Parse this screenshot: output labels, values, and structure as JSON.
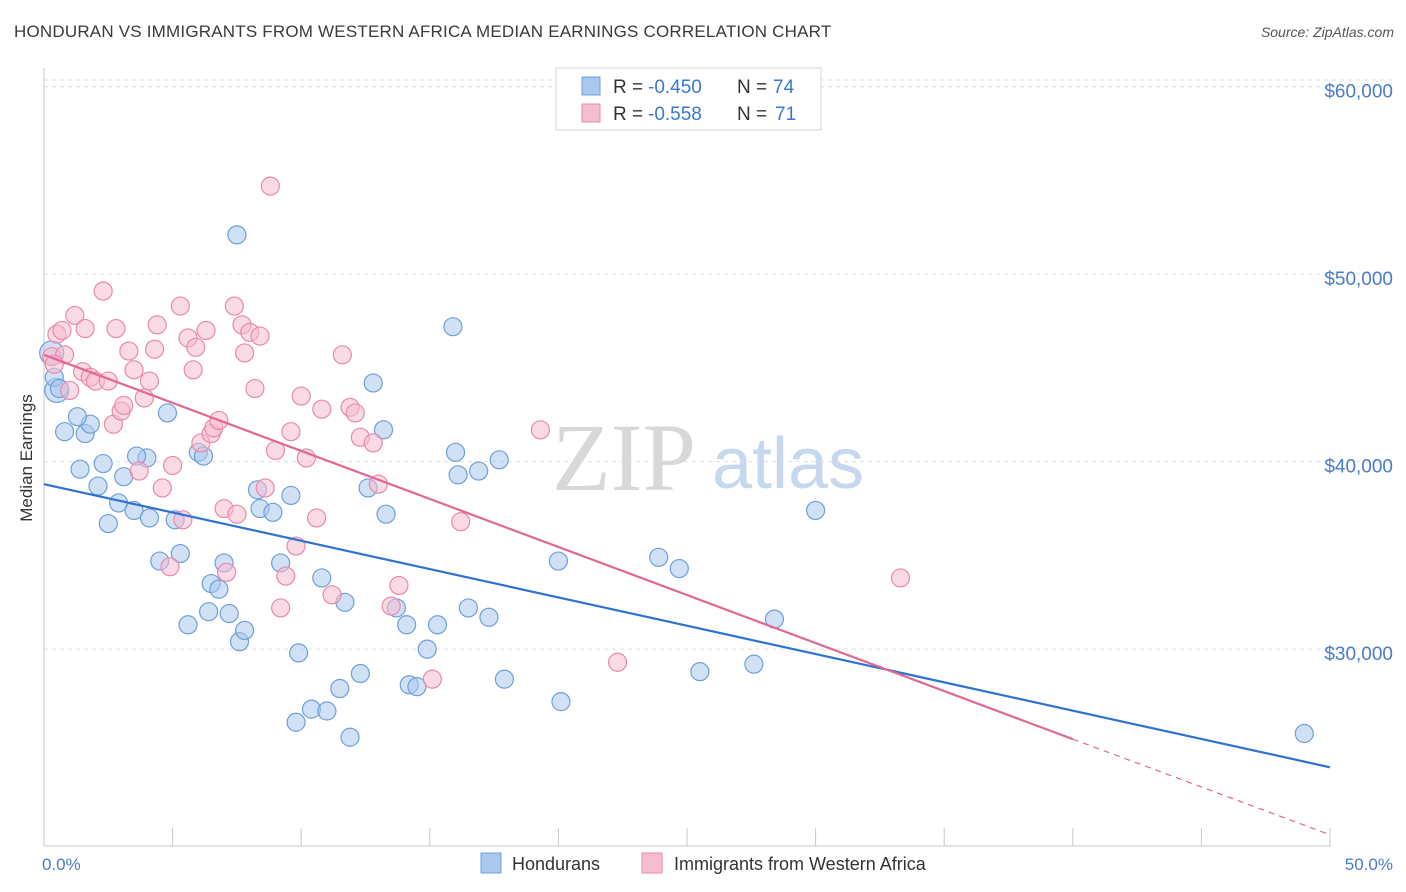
{
  "title": "HONDURAN VS IMMIGRANTS FROM WESTERN AFRICA MEDIAN EARNINGS CORRELATION CHART",
  "source": "Source: ZipAtlas.com",
  "colors": {
    "blue_fill": "#aac8ef",
    "blue_stroke": "#6f9fd8",
    "blue_line": "#2f73d0",
    "pink_fill": "#f6bcd0",
    "pink_stroke": "#e88aa8",
    "pink_line": "#e06894",
    "tick_text": "#4a7cc9",
    "grid": "#dedede"
  },
  "legend": {
    "rows": [
      {
        "r_label": "R =",
        "r_value": "-0.450",
        "n_label": "N =",
        "n_value": "74"
      },
      {
        "r_label": "R =",
        "r_value": "-0.558",
        "n_label": "N =",
        "n_value": "71"
      }
    ]
  },
  "bottom_legend": [
    "Hondurans",
    "Immigrants from Western Africa"
  ],
  "watermark": {
    "zip": "ZIP",
    "atlas": "atlas"
  },
  "chart_data": {
    "type": "scatter",
    "xlabel": "",
    "ylabel": "Median Earnings",
    "x_tick_labels": [
      "0.0%",
      "50.0%"
    ],
    "y_tick_labels": [
      "$30,000",
      "$40,000",
      "$50,000",
      "$60,000"
    ],
    "y_ticks": [
      30000,
      40000,
      50000,
      60000
    ],
    "xlim": [
      0,
      50
    ],
    "ylim": [
      19500,
      61000
    ],
    "grid": true,
    "legend_position": "top-center",
    "series": [
      {
        "name": "Hondurans",
        "trend": {
          "x": [
            0,
            50
          ],
          "y": [
            38800,
            23700
          ]
        },
        "points": [
          [
            0.3,
            45.8
          ],
          [
            0.5,
            43.8
          ],
          [
            0.8,
            41.6
          ],
          [
            1.6,
            41.5
          ],
          [
            1.8,
            42.0
          ],
          [
            2.3,
            39.9
          ],
          [
            1.4,
            39.6
          ],
          [
            2.1,
            38.7
          ],
          [
            2.5,
            36.7
          ],
          [
            2.9,
            37.8
          ],
          [
            3.1,
            39.2
          ],
          [
            3.5,
            37.4
          ],
          [
            4.0,
            40.2
          ],
          [
            3.6,
            40.3
          ],
          [
            4.8,
            42.6
          ],
          [
            4.1,
            37.0
          ],
          [
            4.5,
            34.7
          ],
          [
            5.1,
            36.9
          ],
          [
            5.3,
            35.1
          ],
          [
            5.6,
            31.3
          ],
          [
            6.0,
            40.5
          ],
          [
            6.2,
            40.3
          ],
          [
            6.4,
            32.0
          ],
          [
            6.5,
            33.5
          ],
          [
            6.8,
            33.2
          ],
          [
            7.0,
            34.6
          ],
          [
            7.2,
            31.9
          ],
          [
            7.6,
            30.4
          ],
          [
            7.8,
            31.0
          ],
          [
            7.5,
            52.1
          ],
          [
            8.3,
            38.5
          ],
          [
            8.4,
            37.5
          ],
          [
            8.9,
            37.3
          ],
          [
            9.2,
            34.6
          ],
          [
            9.6,
            38.2
          ],
          [
            9.8,
            26.1
          ],
          [
            9.9,
            29.8
          ],
          [
            10.4,
            26.8
          ],
          [
            10.8,
            33.8
          ],
          [
            11.0,
            26.7
          ],
          [
            11.5,
            27.9
          ],
          [
            11.7,
            32.5
          ],
          [
            11.9,
            25.3
          ],
          [
            12.3,
            28.7
          ],
          [
            12.6,
            38.6
          ],
          [
            12.8,
            44.2
          ],
          [
            13.2,
            41.7
          ],
          [
            13.3,
            37.2
          ],
          [
            13.7,
            32.2
          ],
          [
            14.1,
            31.3
          ],
          [
            14.2,
            28.1
          ],
          [
            14.5,
            28.0
          ],
          [
            14.9,
            30.0
          ],
          [
            15.3,
            31.3
          ],
          [
            15.9,
            47.2
          ],
          [
            16.0,
            40.5
          ],
          [
            16.1,
            39.3
          ],
          [
            16.5,
            32.2
          ],
          [
            16.9,
            39.5
          ],
          [
            17.3,
            31.7
          ],
          [
            17.7,
            40.1
          ],
          [
            17.9,
            28.4
          ],
          [
            20.1,
            27.2
          ],
          [
            20.0,
            34.7
          ],
          [
            23.9,
            34.9
          ],
          [
            24.7,
            34.3
          ],
          [
            25.5,
            28.8
          ],
          [
            27.6,
            29.2
          ],
          [
            28.4,
            31.6
          ],
          [
            30.0,
            37.4
          ],
          [
            49.0,
            25.5
          ],
          [
            0.4,
            44.5
          ],
          [
            0.6,
            43.9
          ],
          [
            1.3,
            42.4
          ]
        ]
      },
      {
        "name": "Immigrants from Western Africa",
        "trend": {
          "x": [
            0,
            40
          ],
          "y": [
            45700,
            25200
          ]
        },
        "trend_dashed": {
          "x": [
            40,
            50
          ],
          "y": [
            25200,
            20100
          ]
        },
        "points": [
          [
            0.3,
            45.6
          ],
          [
            0.5,
            46.8
          ],
          [
            0.7,
            47.0
          ],
          [
            0.8,
            45.7
          ],
          [
            1.0,
            43.8
          ],
          [
            1.2,
            47.8
          ],
          [
            1.5,
            44.8
          ],
          [
            1.6,
            47.1
          ],
          [
            1.8,
            44.5
          ],
          [
            2.0,
            44.3
          ],
          [
            2.3,
            49.1
          ],
          [
            2.5,
            44.3
          ],
          [
            2.7,
            42.0
          ],
          [
            2.8,
            47.1
          ],
          [
            3.0,
            42.7
          ],
          [
            3.1,
            43.0
          ],
          [
            3.3,
            45.9
          ],
          [
            3.5,
            44.9
          ],
          [
            3.7,
            39.5
          ],
          [
            3.9,
            43.4
          ],
          [
            4.1,
            44.3
          ],
          [
            4.3,
            46.0
          ],
          [
            4.4,
            47.3
          ],
          [
            4.6,
            38.6
          ],
          [
            4.9,
            34.4
          ],
          [
            5.0,
            39.8
          ],
          [
            5.3,
            48.3
          ],
          [
            5.4,
            36.9
          ],
          [
            5.6,
            46.6
          ],
          [
            5.8,
            44.9
          ],
          [
            5.9,
            46.1
          ],
          [
            6.1,
            41.0
          ],
          [
            6.3,
            47.0
          ],
          [
            6.5,
            41.5
          ],
          [
            6.6,
            41.8
          ],
          [
            6.8,
            42.2
          ],
          [
            7.0,
            37.5
          ],
          [
            7.1,
            34.1
          ],
          [
            7.4,
            48.3
          ],
          [
            7.5,
            37.2
          ],
          [
            7.7,
            47.3
          ],
          [
            7.8,
            45.8
          ],
          [
            8.0,
            46.9
          ],
          [
            8.2,
            43.9
          ],
          [
            8.4,
            46.7
          ],
          [
            8.6,
            38.6
          ],
          [
            8.8,
            54.7
          ],
          [
            9.0,
            40.6
          ],
          [
            9.2,
            32.2
          ],
          [
            9.4,
            33.9
          ],
          [
            9.6,
            41.6
          ],
          [
            9.8,
            35.5
          ],
          [
            10.0,
            43.5
          ],
          [
            10.2,
            40.2
          ],
          [
            10.6,
            37.0
          ],
          [
            10.8,
            42.8
          ],
          [
            11.2,
            32.9
          ],
          [
            11.6,
            45.7
          ],
          [
            11.9,
            42.9
          ],
          [
            12.1,
            42.6
          ],
          [
            12.3,
            41.3
          ],
          [
            12.8,
            41.0
          ],
          [
            13.0,
            38.8
          ],
          [
            13.5,
            32.3
          ],
          [
            13.8,
            33.4
          ],
          [
            15.1,
            28.4
          ],
          [
            16.2,
            36.8
          ],
          [
            19.3,
            41.7
          ],
          [
            22.3,
            29.3
          ],
          [
            33.3,
            33.8
          ],
          [
            0.4,
            45.2
          ]
        ]
      }
    ]
  }
}
